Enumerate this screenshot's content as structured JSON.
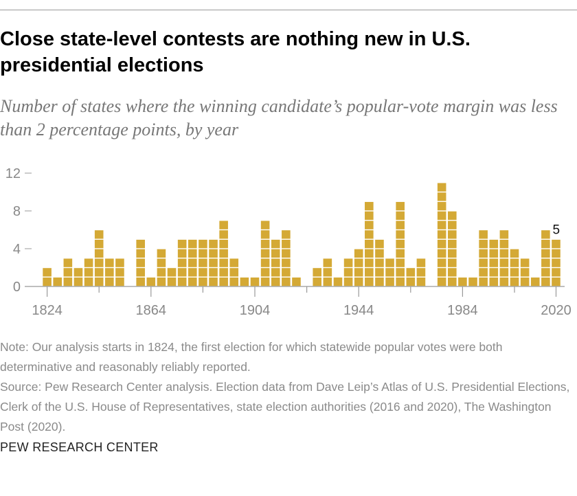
{
  "title": "Close state-level contests are nothing new in U.S. presidential elections",
  "subtitle": "Number of states where the winning candidate’s popular-vote margin was less than 2 percentage points, by year",
  "chart_data": {
    "type": "bar",
    "style": "stacked unit squares",
    "categories": [
      1824,
      1828,
      1832,
      1836,
      1840,
      1844,
      1848,
      1852,
      1856,
      1860,
      1864,
      1868,
      1872,
      1876,
      1880,
      1884,
      1888,
      1892,
      1896,
      1900,
      1904,
      1908,
      1912,
      1916,
      1920,
      1924,
      1928,
      1932,
      1936,
      1940,
      1944,
      1948,
      1952,
      1956,
      1960,
      1964,
      1968,
      1972,
      1976,
      1980,
      1984,
      1988,
      1992,
      1996,
      2000,
      2004,
      2008,
      2012,
      2016,
      2020
    ],
    "values": [
      2,
      1,
      3,
      2,
      3,
      6,
      3,
      3,
      null,
      5,
      1,
      4,
      2,
      5,
      5,
      5,
      5,
      7,
      3,
      1,
      1,
      7,
      5,
      6,
      1,
      null,
      2,
      3,
      1,
      3,
      4,
      9,
      5,
      3,
      9,
      2,
      3,
      null,
      11,
      8,
      1,
      1,
      6,
      5,
      6,
      4,
      3,
      1,
      6,
      5
    ],
    "ylim": [
      0,
      12
    ],
    "yticks": [
      0,
      4,
      8,
      12
    ],
    "xtick_labels": [
      1824,
      1864,
      1904,
      1944,
      1984,
      2020
    ],
    "minor_xticks": [
      1844,
      1884,
      1924,
      1964,
      2004
    ],
    "data_labels": [
      {
        "year": 2020,
        "label": "5"
      }
    ],
    "grid": false,
    "legend": "none",
    "bar_color": "#D4A935",
    "axis_color": "#999999"
  },
  "notes": {
    "note": "Note: Our analysis starts in 1824, the first election for which statewide popular votes were both determinative and reasonably reliably reported.",
    "source": "Source: Pew Research Center analysis. Election data from Dave Leip’s Atlas of U.S. Presidential Elections, Clerk of the U.S. House of Representatives, state election authorities (2016 and 2020), The Washington Post (2020)."
  },
  "footer": "PEW RESEARCH CENTER"
}
